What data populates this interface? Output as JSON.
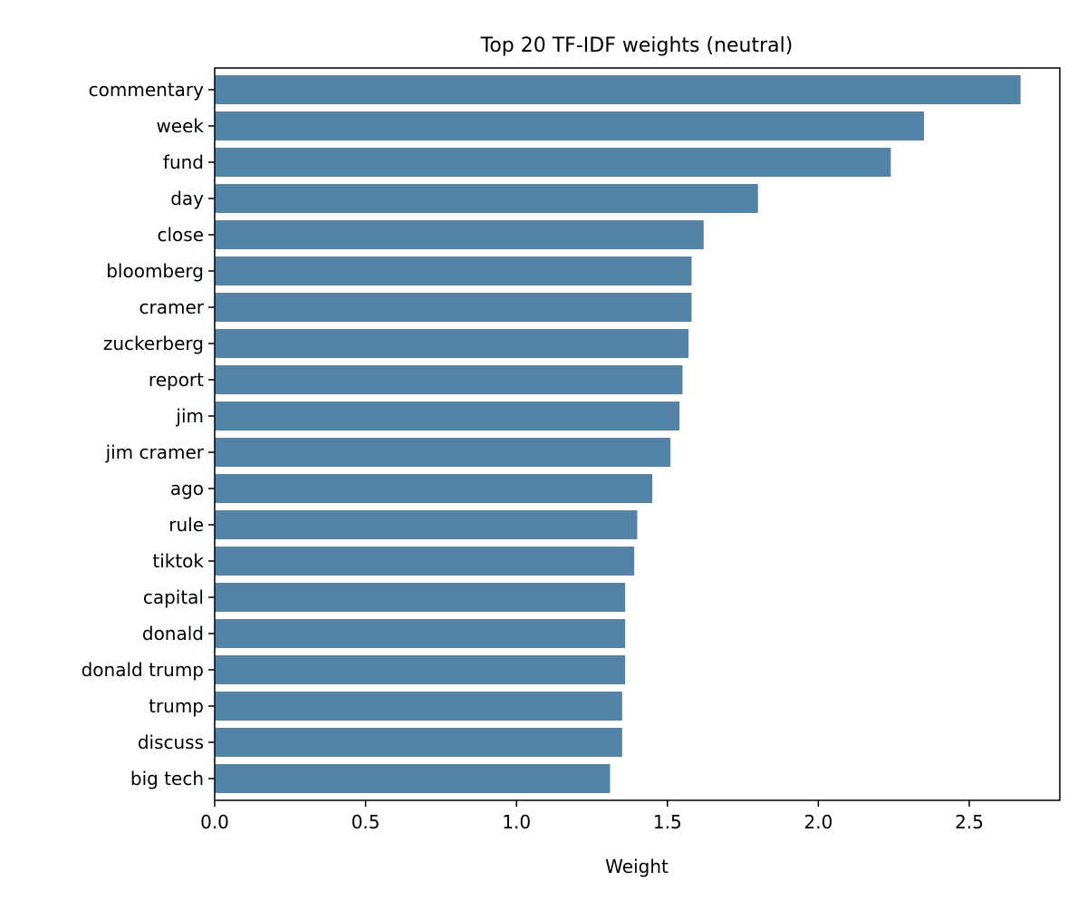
{
  "chart_data": {
    "type": "bar",
    "orientation": "horizontal",
    "title": "Top 20 TF-IDF weights (neutral)",
    "xlabel": "Weight",
    "ylabel": "",
    "xlim": [
      0,
      2.8
    ],
    "xticks": [
      "0.0",
      "0.5",
      "1.0",
      "1.5",
      "2.0",
      "2.5"
    ],
    "xtick_values": [
      0.0,
      0.5,
      1.0,
      1.5,
      2.0,
      2.5
    ],
    "grid": false,
    "bar_color": "#5483a8",
    "categories": [
      "commentary",
      "week",
      "fund",
      "day",
      "close",
      "bloomberg",
      "cramer",
      "zuckerberg",
      "report",
      "jim",
      "jim cramer",
      "ago",
      "rule",
      "tiktok",
      "capital",
      "donald",
      "donald trump",
      "trump",
      "discuss",
      "big tech"
    ],
    "values": [
      2.67,
      2.35,
      2.24,
      1.8,
      1.62,
      1.58,
      1.58,
      1.57,
      1.55,
      1.54,
      1.51,
      1.45,
      1.4,
      1.39,
      1.36,
      1.36,
      1.36,
      1.35,
      1.35,
      1.31
    ]
  }
}
